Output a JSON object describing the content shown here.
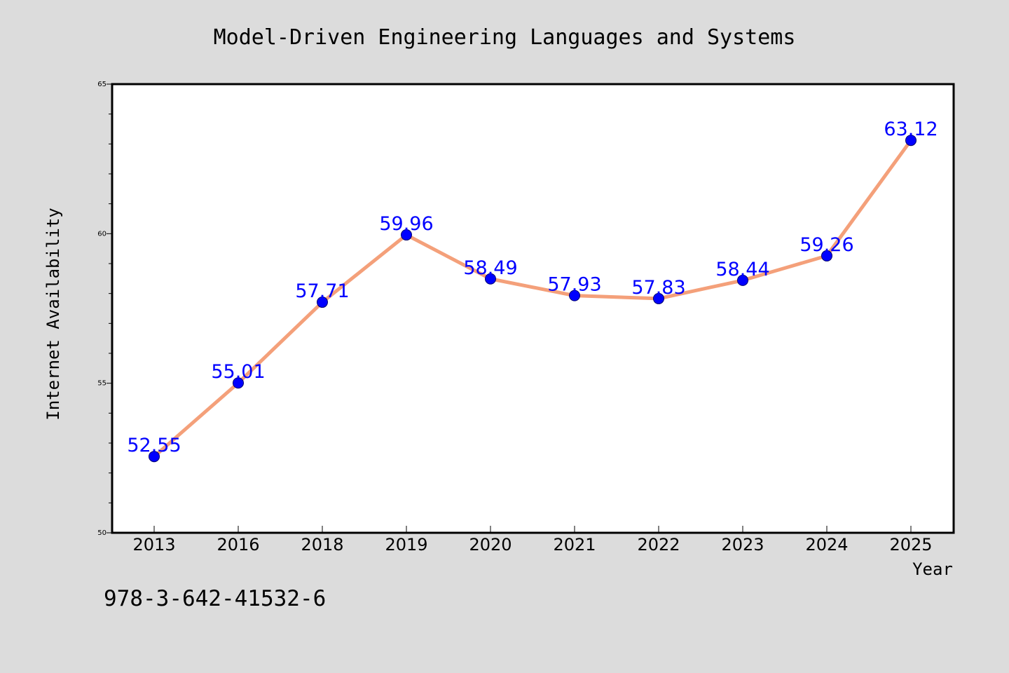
{
  "chart_data": {
    "type": "line",
    "title": "Model-Driven Engineering Languages and Systems",
    "xlabel": "Year",
    "ylabel": "Internet Availability",
    "categories": [
      "2013",
      "2016",
      "2018",
      "2019",
      "2020",
      "2021",
      "2022",
      "2023",
      "2024",
      "2025"
    ],
    "series": [
      {
        "values": [
          52.55,
          55.01,
          57.71,
          59.96,
          58.49,
          57.93,
          57.83,
          58.44,
          59.26,
          63.12
        ],
        "value_labels": [
          "52.55",
          "55.01",
          "57.71",
          "59.96",
          "58.49",
          "57.93",
          "57.83",
          "58.44",
          "59.26",
          "63.12"
        ],
        "line_color": "#f4a07a",
        "marker_color": "#0000ff"
      }
    ],
    "ylim": [
      50,
      65
    ],
    "yticks": [
      50,
      55,
      60,
      65
    ],
    "ytick_labels": [
      "50",
      "55",
      "60",
      "65"
    ],
    "label_color": "#0000ff",
    "grid": false,
    "legend": "none"
  },
  "footer": {
    "isbn": "978-3-642-41532-6"
  }
}
